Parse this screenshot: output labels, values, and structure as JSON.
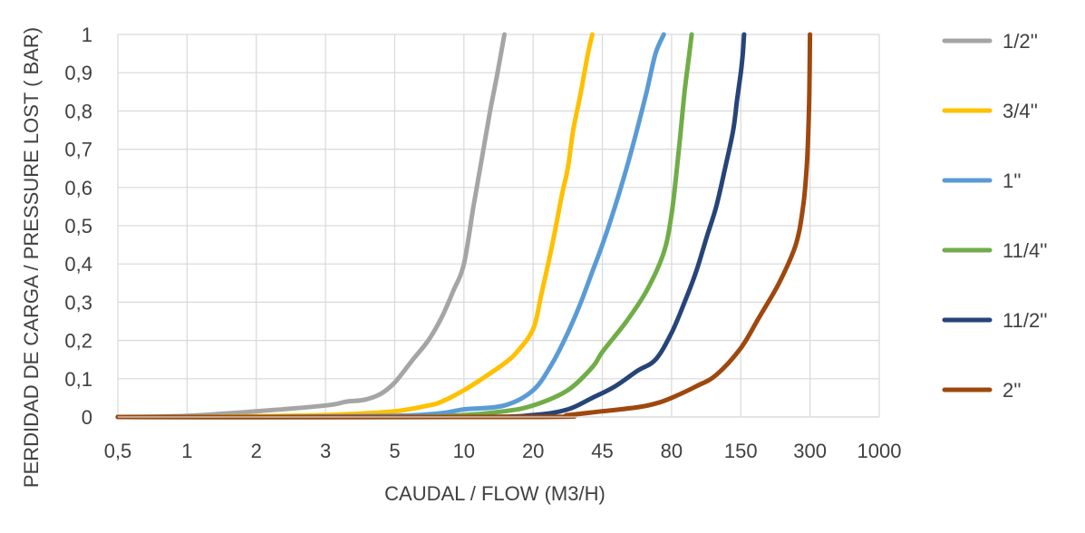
{
  "chart_data": {
    "type": "line",
    "title": "",
    "xlabel": "CAUDAL / FLOW (M3/H)",
    "ylabel": "PERDIDAD DE CARGA / PRESSURE LOST ( BAR)",
    "categories": [
      "0,5",
      "1",
      "2",
      "3",
      "5",
      "10",
      "20",
      "45",
      "80",
      "150",
      "300",
      "1000"
    ],
    "y_ticks": [
      "0",
      "0,1",
      "0,2",
      "0,3",
      "0,4",
      "0,5",
      "0,6",
      "0,7",
      "0,8",
      "0,9",
      "1"
    ],
    "ylim": [
      0,
      1
    ],
    "grid": true,
    "legend_position": "right",
    "series": [
      {
        "name": "1/2''",
        "color": "#a5a5a5",
        "points": [
          [
            0.5,
            0
          ],
          [
            1,
            0.003
          ],
          [
            2,
            0.015
          ],
          [
            3,
            0.03
          ],
          [
            3.5,
            0.04
          ],
          [
            4,
            0.045
          ],
          [
            4.5,
            0.06
          ],
          [
            5,
            0.09
          ],
          [
            6,
            0.15
          ],
          [
            7,
            0.2
          ],
          [
            8,
            0.26
          ],
          [
            9,
            0.33
          ],
          [
            10,
            0.4
          ],
          [
            11,
            0.55
          ],
          [
            12,
            0.68
          ],
          [
            13,
            0.8
          ],
          [
            14,
            0.9
          ],
          [
            15,
            1.0
          ]
        ]
      },
      {
        "name": "3/4''",
        "color": "#ffc000",
        "points": [
          [
            0.5,
            0
          ],
          [
            1,
            0
          ],
          [
            2,
            0.002
          ],
          [
            3,
            0.005
          ],
          [
            5,
            0.015
          ],
          [
            7,
            0.03
          ],
          [
            8,
            0.04
          ],
          [
            10,
            0.07
          ],
          [
            12,
            0.1
          ],
          [
            15,
            0.14
          ],
          [
            17,
            0.17
          ],
          [
            20,
            0.23
          ],
          [
            22,
            0.32
          ],
          [
            25,
            0.45
          ],
          [
            28,
            0.58
          ],
          [
            30,
            0.65
          ],
          [
            32,
            0.75
          ],
          [
            35,
            0.85
          ],
          [
            38,
            0.95
          ],
          [
            40,
            1.0
          ]
        ]
      },
      {
        "name": "1''",
        "color": "#5b9bd5",
        "points": [
          [
            0.5,
            0
          ],
          [
            2,
            0
          ],
          [
            5,
            0.003
          ],
          [
            8,
            0.01
          ],
          [
            10,
            0.02
          ],
          [
            15,
            0.03
          ],
          [
            20,
            0.07
          ],
          [
            25,
            0.14
          ],
          [
            30,
            0.22
          ],
          [
            35,
            0.3
          ],
          [
            40,
            0.38
          ],
          [
            45,
            0.45
          ],
          [
            50,
            0.55
          ],
          [
            55,
            0.65
          ],
          [
            60,
            0.75
          ],
          [
            65,
            0.85
          ],
          [
            70,
            0.95
          ],
          [
            75,
            1.0
          ]
        ]
      },
      {
        "name": "11/4''",
        "color": "#70ad47",
        "points": [
          [
            0.5,
            0
          ],
          [
            5,
            0
          ],
          [
            10,
            0.005
          ],
          [
            15,
            0.015
          ],
          [
            20,
            0.03
          ],
          [
            30,
            0.07
          ],
          [
            40,
            0.13
          ],
          [
            45,
            0.17
          ],
          [
            55,
            0.25
          ],
          [
            65,
            0.33
          ],
          [
            75,
            0.43
          ],
          [
            80,
            0.53
          ],
          [
            84,
            0.65
          ],
          [
            87,
            0.75
          ],
          [
            90,
            0.85
          ],
          [
            94,
            0.95
          ],
          [
            96,
            1.0
          ]
        ]
      },
      {
        "name": "11/2''",
        "color": "#264478",
        "points": [
          [
            0.5,
            0
          ],
          [
            10,
            0
          ],
          [
            20,
            0.005
          ],
          [
            30,
            0.02
          ],
          [
            40,
            0.05
          ],
          [
            50,
            0.08
          ],
          [
            60,
            0.12
          ],
          [
            70,
            0.15
          ],
          [
            80,
            0.22
          ],
          [
            90,
            0.3
          ],
          [
            100,
            0.38
          ],
          [
            110,
            0.47
          ],
          [
            120,
            0.55
          ],
          [
            130,
            0.65
          ],
          [
            140,
            0.75
          ],
          [
            145,
            0.83
          ],
          [
            150,
            0.9
          ],
          [
            153,
            0.95
          ],
          [
            155,
            1.0
          ]
        ]
      },
      {
        "name": "2''",
        "color": "#9e480e",
        "points": [
          [
            0.5,
            0
          ],
          [
            20,
            0
          ],
          [
            30,
            0.005
          ],
          [
            45,
            0.015
          ],
          [
            60,
            0.025
          ],
          [
            70,
            0.035
          ],
          [
            80,
            0.05
          ],
          [
            100,
            0.08
          ],
          [
            120,
            0.11
          ],
          [
            150,
            0.18
          ],
          [
            180,
            0.26
          ],
          [
            220,
            0.35
          ],
          [
            260,
            0.45
          ],
          [
            280,
            0.55
          ],
          [
            290,
            0.65
          ],
          [
            295,
            0.75
          ],
          [
            298,
            0.85
          ],
          [
            300,
            1.0
          ]
        ]
      }
    ]
  }
}
